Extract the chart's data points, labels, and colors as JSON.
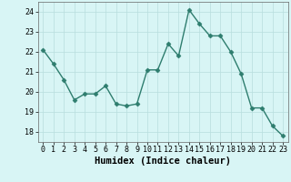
{
  "x": [
    0,
    1,
    2,
    3,
    4,
    5,
    6,
    7,
    8,
    9,
    10,
    11,
    12,
    13,
    14,
    15,
    16,
    17,
    18,
    19,
    20,
    21,
    22,
    23
  ],
  "y": [
    22.1,
    21.4,
    20.6,
    19.6,
    19.9,
    19.9,
    20.3,
    19.4,
    19.3,
    19.4,
    21.1,
    21.1,
    22.4,
    21.8,
    24.1,
    23.4,
    22.8,
    22.8,
    22.0,
    20.9,
    19.2,
    19.2,
    18.3,
    17.8
  ],
  "line_color": "#2e7d6e",
  "marker": "D",
  "marker_size": 2.5,
  "linewidth": 1.0,
  "bg_color": "#d8f5f5",
  "grid_color": "#b8dede",
  "xlabel": "Humidex (Indice chaleur)",
  "xlabel_fontsize": 7.5,
  "tick_fontsize": 6,
  "ylim": [
    17.5,
    24.5
  ],
  "yticks": [
    18,
    19,
    20,
    21,
    22,
    23,
    24
  ],
  "xlim": [
    -0.5,
    23.5
  ],
  "xticks": [
    0,
    1,
    2,
    3,
    4,
    5,
    6,
    7,
    8,
    9,
    10,
    11,
    12,
    13,
    14,
    15,
    16,
    17,
    18,
    19,
    20,
    21,
    22,
    23
  ]
}
